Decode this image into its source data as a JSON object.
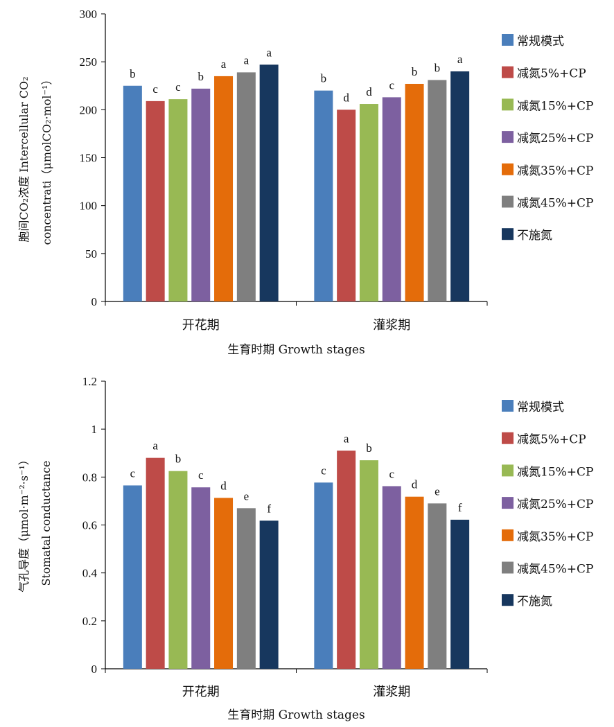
{
  "colors": [
    "#4a7ebb",
    "#be4b48",
    "#98b954",
    "#7d60a0",
    "#e46c0a",
    "#7f7f7f",
    "#17375e"
  ],
  "chart_data": [
    {
      "type": "bar",
      "categories": [
        "开花期",
        "灌浆期"
      ],
      "xlabel": "生育时期 Growth stages",
      "ylabel_line1": "胞间CO₂浓度  Intercellular CO₂",
      "ylabel_line2": "concentrati（μmolCO₂·mol⁻¹）",
      "ylim": [
        0,
        300
      ],
      "yticks": [
        "0",
        "50",
        "100",
        "150",
        "200",
        "250",
        "300"
      ],
      "legend_position": "right",
      "series": [
        {
          "name": "常规模式",
          "values": [
            225,
            220
          ],
          "labels": [
            "b",
            "b"
          ]
        },
        {
          "name": "减氮5%+CP",
          "values": [
            209,
            200
          ],
          "labels": [
            "c",
            "d"
          ]
        },
        {
          "name": "减氮15%+CP",
          "values": [
            211,
            206
          ],
          "labels": [
            "c",
            "d"
          ]
        },
        {
          "name": "减氮25%+CP",
          "values": [
            222,
            213
          ],
          "labels": [
            "b",
            "c"
          ]
        },
        {
          "name": "减氮35%+CP",
          "values": [
            235,
            227
          ],
          "labels": [
            "a",
            "b"
          ]
        },
        {
          "name": "减氮45%+CP",
          "values": [
            239,
            231
          ],
          "labels": [
            "a",
            "b"
          ]
        },
        {
          "name": "不施氮",
          "values": [
            247,
            240
          ],
          "labels": [
            "a",
            "a"
          ]
        }
      ]
    },
    {
      "type": "bar",
      "categories": [
        "开花期",
        "灌浆期"
      ],
      "xlabel": "生育时期 Growth stages",
      "ylabel_line1": "气孔导度（μmol·m⁻²·s⁻¹）",
      "ylabel_line2": "Stomatal conductance",
      "ylim": [
        0,
        1.2
      ],
      "yticks": [
        "0",
        "0.2",
        "0.4",
        "0.6",
        "0.8",
        "1",
        "1.2"
      ],
      "legend_position": "right",
      "series": [
        {
          "name": "常规模式",
          "values": [
            0.765,
            0.777
          ],
          "labels": [
            "c",
            "c"
          ]
        },
        {
          "name": "减氮5%+CP",
          "values": [
            0.88,
            0.91
          ],
          "labels": [
            "a",
            "a"
          ]
        },
        {
          "name": "减氮15%+CP",
          "values": [
            0.825,
            0.87
          ],
          "labels": [
            "b",
            "b"
          ]
        },
        {
          "name": "减氮25%+CP",
          "values": [
            0.757,
            0.762
          ],
          "labels": [
            "c",
            "c"
          ]
        },
        {
          "name": "减氮35%+CP",
          "values": [
            0.713,
            0.718
          ],
          "labels": [
            "d",
            "d"
          ]
        },
        {
          "name": "减氮45%+CP",
          "values": [
            0.67,
            0.69
          ],
          "labels": [
            "e",
            "e"
          ]
        },
        {
          "name": "不施氮",
          "values": [
            0.618,
            0.622
          ],
          "labels": [
            "f",
            "f"
          ]
        }
      ]
    }
  ]
}
